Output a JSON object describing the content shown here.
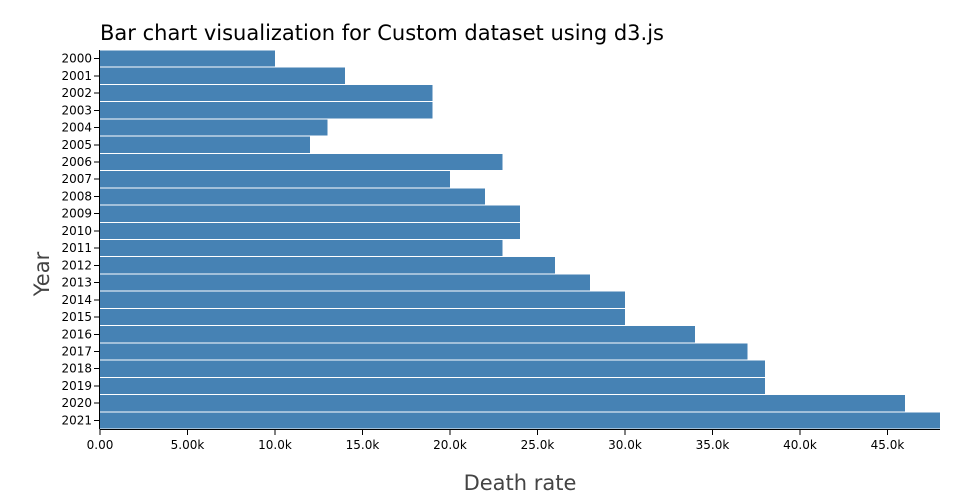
{
  "chart_data": {
    "type": "bar",
    "orientation": "horizontal",
    "title": "Bar chart visualization for Custom dataset using d3.js",
    "xlabel": "Death rate",
    "ylabel": "Year",
    "categories": [
      "2000",
      "2001",
      "2002",
      "2003",
      "2004",
      "2005",
      "2006",
      "2007",
      "2008",
      "2009",
      "2010",
      "2011",
      "2012",
      "2013",
      "2014",
      "2015",
      "2016",
      "2017",
      "2018",
      "2019",
      "2020",
      "2021"
    ],
    "values": [
      10000,
      14000,
      19000,
      19000,
      13000,
      12000,
      23000,
      20000,
      22000,
      24000,
      24000,
      23000,
      26000,
      28000,
      30000,
      30000,
      34000,
      37000,
      38000,
      38000,
      46000,
      48000
    ],
    "xlim": [
      0,
      48000
    ],
    "x_ticks": [
      0,
      5000,
      10000,
      15000,
      20000,
      25000,
      30000,
      35000,
      40000,
      45000
    ],
    "x_tick_labels": [
      "0.00",
      "5.00k",
      "10.0k",
      "15.0k",
      "20.0k",
      "25.0k",
      "30.0k",
      "35.0k",
      "40.0k",
      "45.0k"
    ],
    "bar_color": "#4682b4",
    "grid": false
  }
}
